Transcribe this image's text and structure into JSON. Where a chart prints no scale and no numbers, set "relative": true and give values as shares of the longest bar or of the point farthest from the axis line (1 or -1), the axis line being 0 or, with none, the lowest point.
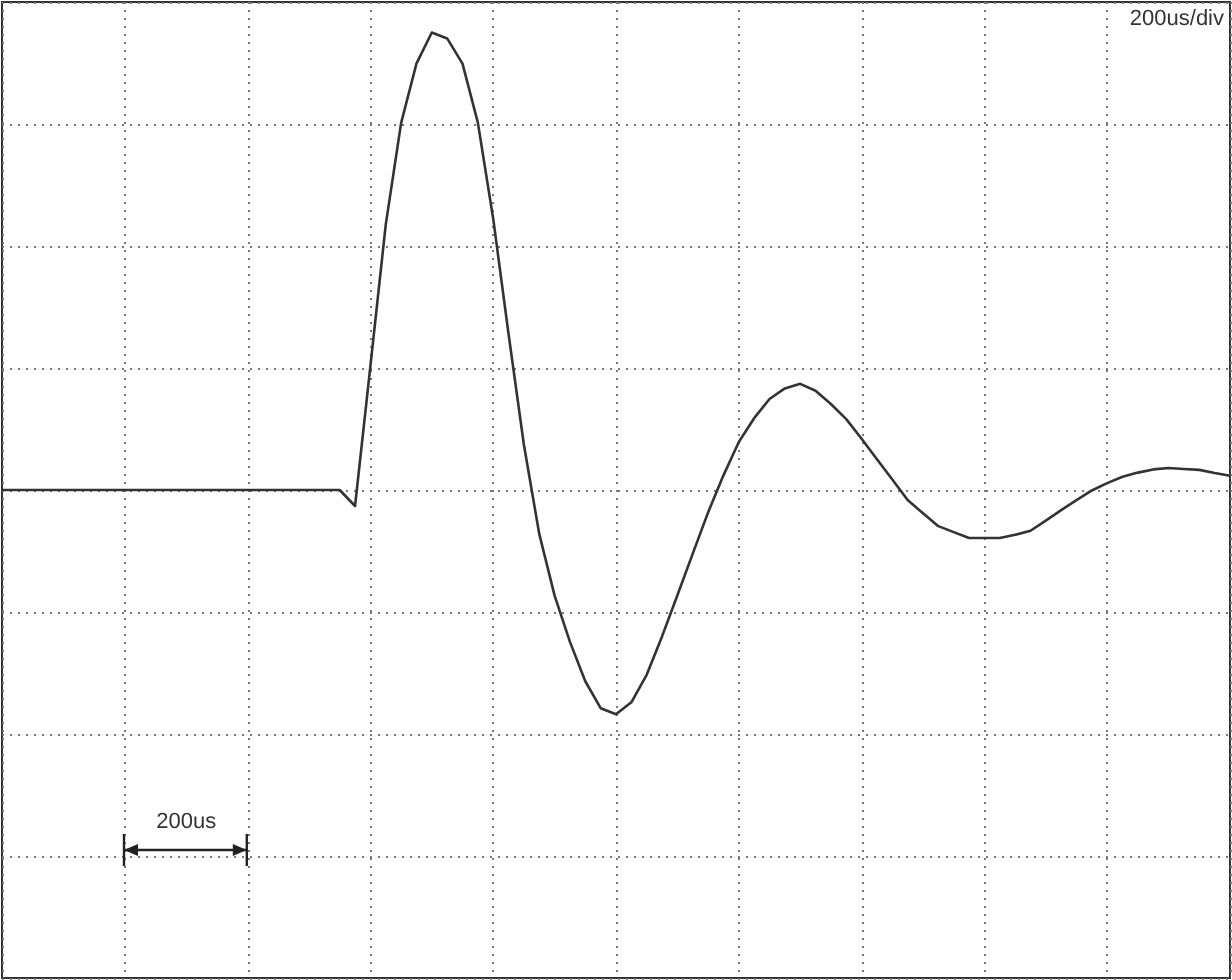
{
  "chart_data": {
    "type": "line",
    "relative": true,
    "color": "#333333",
    "grid": true,
    "categories": [
      null,
      null,
      null,
      null,
      null,
      null,
      null,
      null,
      null,
      null,
      null,
      null,
      null,
      null,
      null,
      null,
      null,
      null,
      null,
      null,
      null,
      null,
      null,
      null,
      null,
      null,
      null,
      null,
      null,
      null,
      null,
      null,
      null,
      null,
      null,
      null,
      null,
      null,
      null,
      null,
      null,
      null,
      null,
      null,
      null,
      null,
      null,
      null,
      null,
      null,
      null,
      null,
      null,
      null,
      null,
      null,
      null,
      null,
      null,
      null,
      null,
      null,
      null,
      null,
      null,
      null,
      null,
      null,
      null,
      null,
      null,
      null,
      null,
      null,
      null,
      null,
      null,
      null,
      null,
      null,
      null
    ],
    "values": [
      0,
      0,
      0,
      0,
      0,
      0,
      0,
      0,
      0,
      0,
      0,
      0,
      0,
      0,
      0,
      0,
      0,
      0,
      0,
      0,
      0,
      0,
      0,
      -0.035,
      0.271,
      0.58,
      0.802,
      0.932,
      1,
      0.987,
      0.932,
      0.803,
      0.593,
      0.341,
      0.099,
      -0.096,
      -0.231,
      -0.332,
      -0.418,
      -0.477,
      -0.49,
      -0.464,
      -0.404,
      -0.32,
      -0.23,
      -0.139,
      -0.049,
      0.032,
      0.105,
      0.157,
      0.199,
      0.222,
      0.232,
      0.217,
      0.188,
      0.155,
      0.112,
      0.067,
      0.023,
      -0.022,
      -0.051,
      -0.079,
      -0.092,
      -0.105,
      -0.105,
      -0.105,
      -0.098,
      -0.089,
      -0.067,
      -0.044,
      -0.022,
      -0.001,
      0.015,
      0.029,
      0.038,
      0.045,
      0.048,
      0.046,
      0.044,
      0.037,
      0.031
    ],
    "annotations": [
      "200us/div",
      "200us"
    ]
  }
}
